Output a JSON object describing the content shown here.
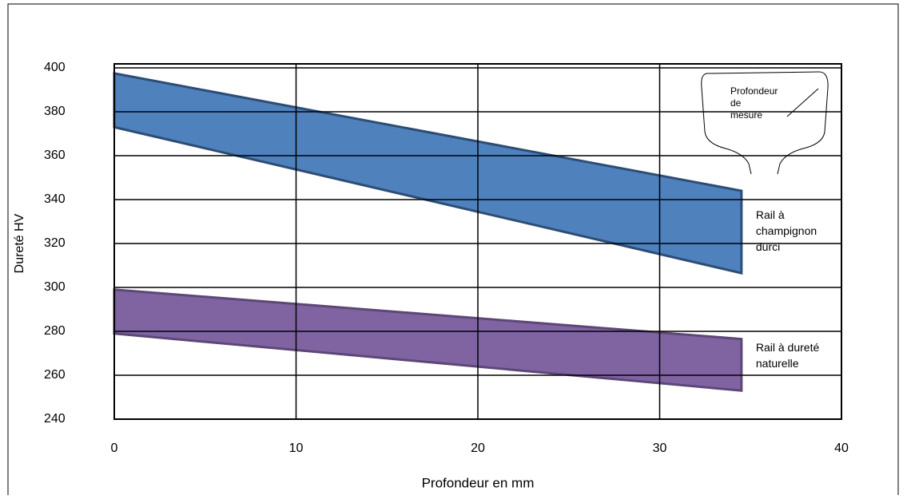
{
  "chart_data": {
    "type": "band",
    "x_label": "Profondeur en mm",
    "y_label": "Dureté HV",
    "xlim": [
      0,
      40
    ],
    "xticks": [
      0,
      10,
      20,
      30,
      40
    ],
    "ylim": [
      240,
      400
    ],
    "yticks": [
      240,
      260,
      280,
      300,
      320,
      340,
      360,
      380,
      400
    ],
    "grid": true,
    "inset_label": [
      "Profondeur",
      "de",
      "mesure"
    ],
    "series": [
      {
        "name": "Rail à champignon durci",
        "color": "#4f81bd",
        "edge_color": "#2c4d75",
        "x": [
          0,
          34.5
        ],
        "upper": [
          397.5,
          344
        ],
        "lower": [
          373,
          306.5
        ]
      },
      {
        "name": "Rail à dureté naturelle",
        "color": "#8064a2",
        "edge_color": "#5c4776",
        "x": [
          0,
          34.5
        ],
        "upper": [
          299,
          276.5
        ],
        "lower": [
          279,
          253
        ]
      }
    ]
  }
}
